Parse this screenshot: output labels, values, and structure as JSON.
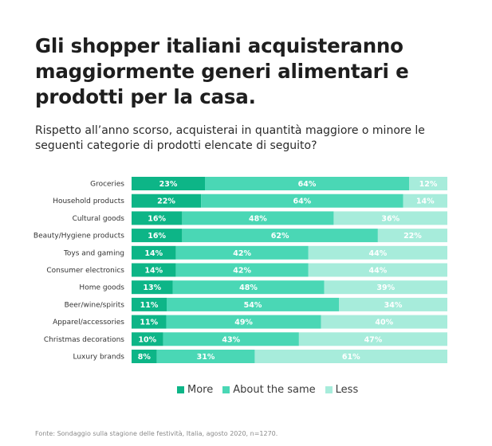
{
  "title": "Gli shopper italiani acquisteranno maggiormente generi alimentari e prodotti per la casa.",
  "subtitle": "Rispetto all’anno scorso, acquisterai in quantità maggiore o minore le seguenti categorie di prodotti elencate di seguito?",
  "source": "Fonte: Sondaggio sulla stagione delle festività, Italia, agosto 2020, n=1270.",
  "colors": {
    "more": "#0db587",
    "about_same": "#4ad7b5",
    "less": "#a7ecdb",
    "label_text": "#ffffff"
  },
  "chart_data": {
    "type": "bar",
    "orientation": "horizontal",
    "stacked": true,
    "categories": [
      "Groceries",
      "Household products",
      "Cultural goods",
      "Beauty/Hygiene products",
      "Toys and gaming",
      "Consumer electronics",
      "Home goods",
      "Beer/wine/spirits",
      "Apparel/accessories",
      "Christmas decorations",
      "Luxury brands"
    ],
    "series": [
      {
        "name": "More",
        "values": [
          23,
          22,
          16,
          16,
          14,
          14,
          13,
          11,
          11,
          10,
          8
        ]
      },
      {
        "name": "About the same",
        "values": [
          64,
          64,
          48,
          62,
          42,
          42,
          48,
          54,
          49,
          43,
          31
        ]
      },
      {
        "name": "Less",
        "values": [
          12,
          14,
          36,
          22,
          44,
          44,
          39,
          34,
          40,
          47,
          61
        ]
      }
    ],
    "value_suffix": "%",
    "legend_position": "bottom",
    "grid": false
  }
}
